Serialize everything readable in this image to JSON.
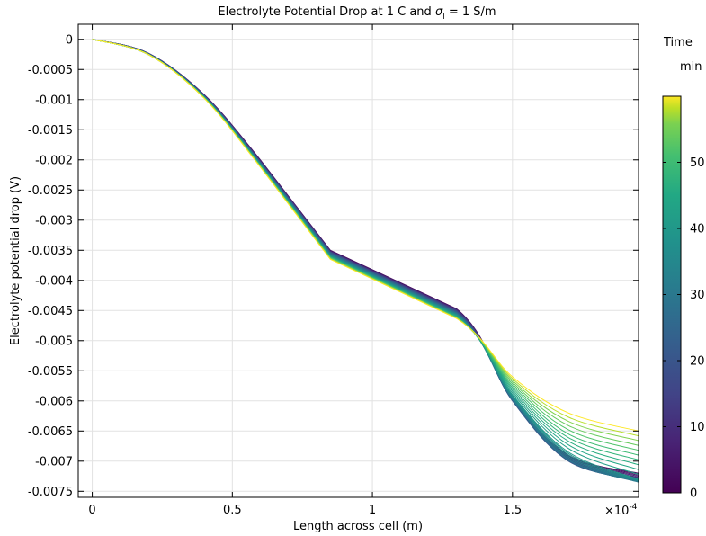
{
  "chart_data": {
    "type": "line",
    "title_prefix": "Electrolyte Potential Drop at 1 C and ",
    "title_symbol": "σ",
    "title_subscript": "l",
    "title_suffix": " = 1 S/m",
    "xlabel": "Length across cell (m)",
    "ylabel": "Electrolyte potential drop (V)",
    "x_multiplier_base": "×10",
    "x_multiplier_exp": "-4",
    "xlim": [
      -0.05,
      1.95
    ],
    "ylim": [
      -0.0076,
      0.00025
    ],
    "x_ticks": [
      {
        "v": 0,
        "label": "0"
      },
      {
        "v": 0.5,
        "label": "0.5"
      },
      {
        "v": 1,
        "label": "1"
      },
      {
        "v": 1.5,
        "label": "1.5"
      }
    ],
    "y_ticks": [
      {
        "v": 0,
        "label": "0"
      },
      {
        "v": -0.0005,
        "label": "-0.0005"
      },
      {
        "v": -0.001,
        "label": "-0.001"
      },
      {
        "v": -0.0015,
        "label": "-0.0015"
      },
      {
        "v": -0.002,
        "label": "-0.002"
      },
      {
        "v": -0.0025,
        "label": "-0.0025"
      },
      {
        "v": -0.003,
        "label": "-0.003"
      },
      {
        "v": -0.0035,
        "label": "-0.0035"
      },
      {
        "v": -0.004,
        "label": "-0.004"
      },
      {
        "v": -0.0045,
        "label": "-0.0045"
      },
      {
        "v": -0.005,
        "label": "-0.005"
      },
      {
        "v": -0.0055,
        "label": "-0.0055"
      },
      {
        "v": -0.006,
        "label": "-0.006"
      },
      {
        "v": -0.0065,
        "label": "-0.0065"
      },
      {
        "v": -0.007,
        "label": "-0.007"
      },
      {
        "v": -0.0075,
        "label": "-0.0075"
      }
    ],
    "grid": true,
    "colorbar": {
      "title": "Time",
      "unit": "min",
      "range": [
        0,
        60
      ],
      "colormap": "viridis",
      "ticks": [
        {
          "v": 0,
          "label": "0"
        },
        {
          "v": 10,
          "label": "10"
        },
        {
          "v": 20,
          "label": "20"
        },
        {
          "v": 30,
          "label": "30"
        },
        {
          "v": 40,
          "label": "40"
        },
        {
          "v": 50,
          "label": "50"
        }
      ]
    },
    "curve_count": 30,
    "series": [
      {
        "time_min": 2,
        "x": [
          0,
          0.2,
          0.4,
          0.6,
          0.85,
          1.3,
          1.5,
          1.7,
          1.95
        ],
        "y": [
          0,
          -0.00023,
          -0.00092,
          -0.002,
          -0.0035,
          -0.00447,
          -0.00595,
          -0.0069,
          -0.0072
        ]
      },
      {
        "time_min": 10,
        "x": [
          0,
          0.2,
          0.4,
          0.6,
          0.85,
          1.3,
          1.5,
          1.7,
          1.95
        ],
        "y": [
          0,
          -0.00023,
          -0.00093,
          -0.00202,
          -0.00352,
          -0.00449,
          -0.00597,
          -0.00695,
          -0.00727
        ]
      },
      {
        "time_min": 20,
        "x": [
          0,
          0.2,
          0.4,
          0.6,
          0.85,
          1.3,
          1.5,
          1.7,
          1.95
        ],
        "y": [
          0,
          -0.00024,
          -0.00094,
          -0.00204,
          -0.00354,
          -0.00452,
          -0.006,
          -0.007,
          -0.00732
        ]
      },
      {
        "time_min": 30,
        "x": [
          0,
          0.2,
          0.4,
          0.6,
          0.85,
          1.3,
          1.5,
          1.7,
          1.95
        ],
        "y": [
          0,
          -0.00024,
          -0.00095,
          -0.00206,
          -0.00357,
          -0.00455,
          -0.00597,
          -0.00697,
          -0.00735
        ]
      },
      {
        "time_min": 40,
        "x": [
          0,
          0.2,
          0.4,
          0.6,
          0.85,
          1.3,
          1.5,
          1.7,
          1.95
        ],
        "y": [
          0,
          -0.00025,
          -0.00096,
          -0.00208,
          -0.0036,
          -0.00458,
          -0.0059,
          -0.00685,
          -0.0073
        ]
      },
      {
        "time_min": 50,
        "x": [
          0,
          0.2,
          0.4,
          0.6,
          0.85,
          1.3,
          1.5,
          1.7,
          1.95
        ],
        "y": [
          0,
          -0.00025,
          -0.00097,
          -0.0021,
          -0.00362,
          -0.00461,
          -0.00575,
          -0.00655,
          -0.0069
        ]
      },
      {
        "time_min": 60,
        "x": [
          0,
          0.2,
          0.4,
          0.6,
          0.85,
          1.3,
          1.5,
          1.7,
          1.95
        ],
        "y": [
          0,
          -0.00025,
          -0.00098,
          -0.00212,
          -0.00365,
          -0.00463,
          -0.0056,
          -0.0062,
          -0.0065
        ]
      }
    ]
  }
}
